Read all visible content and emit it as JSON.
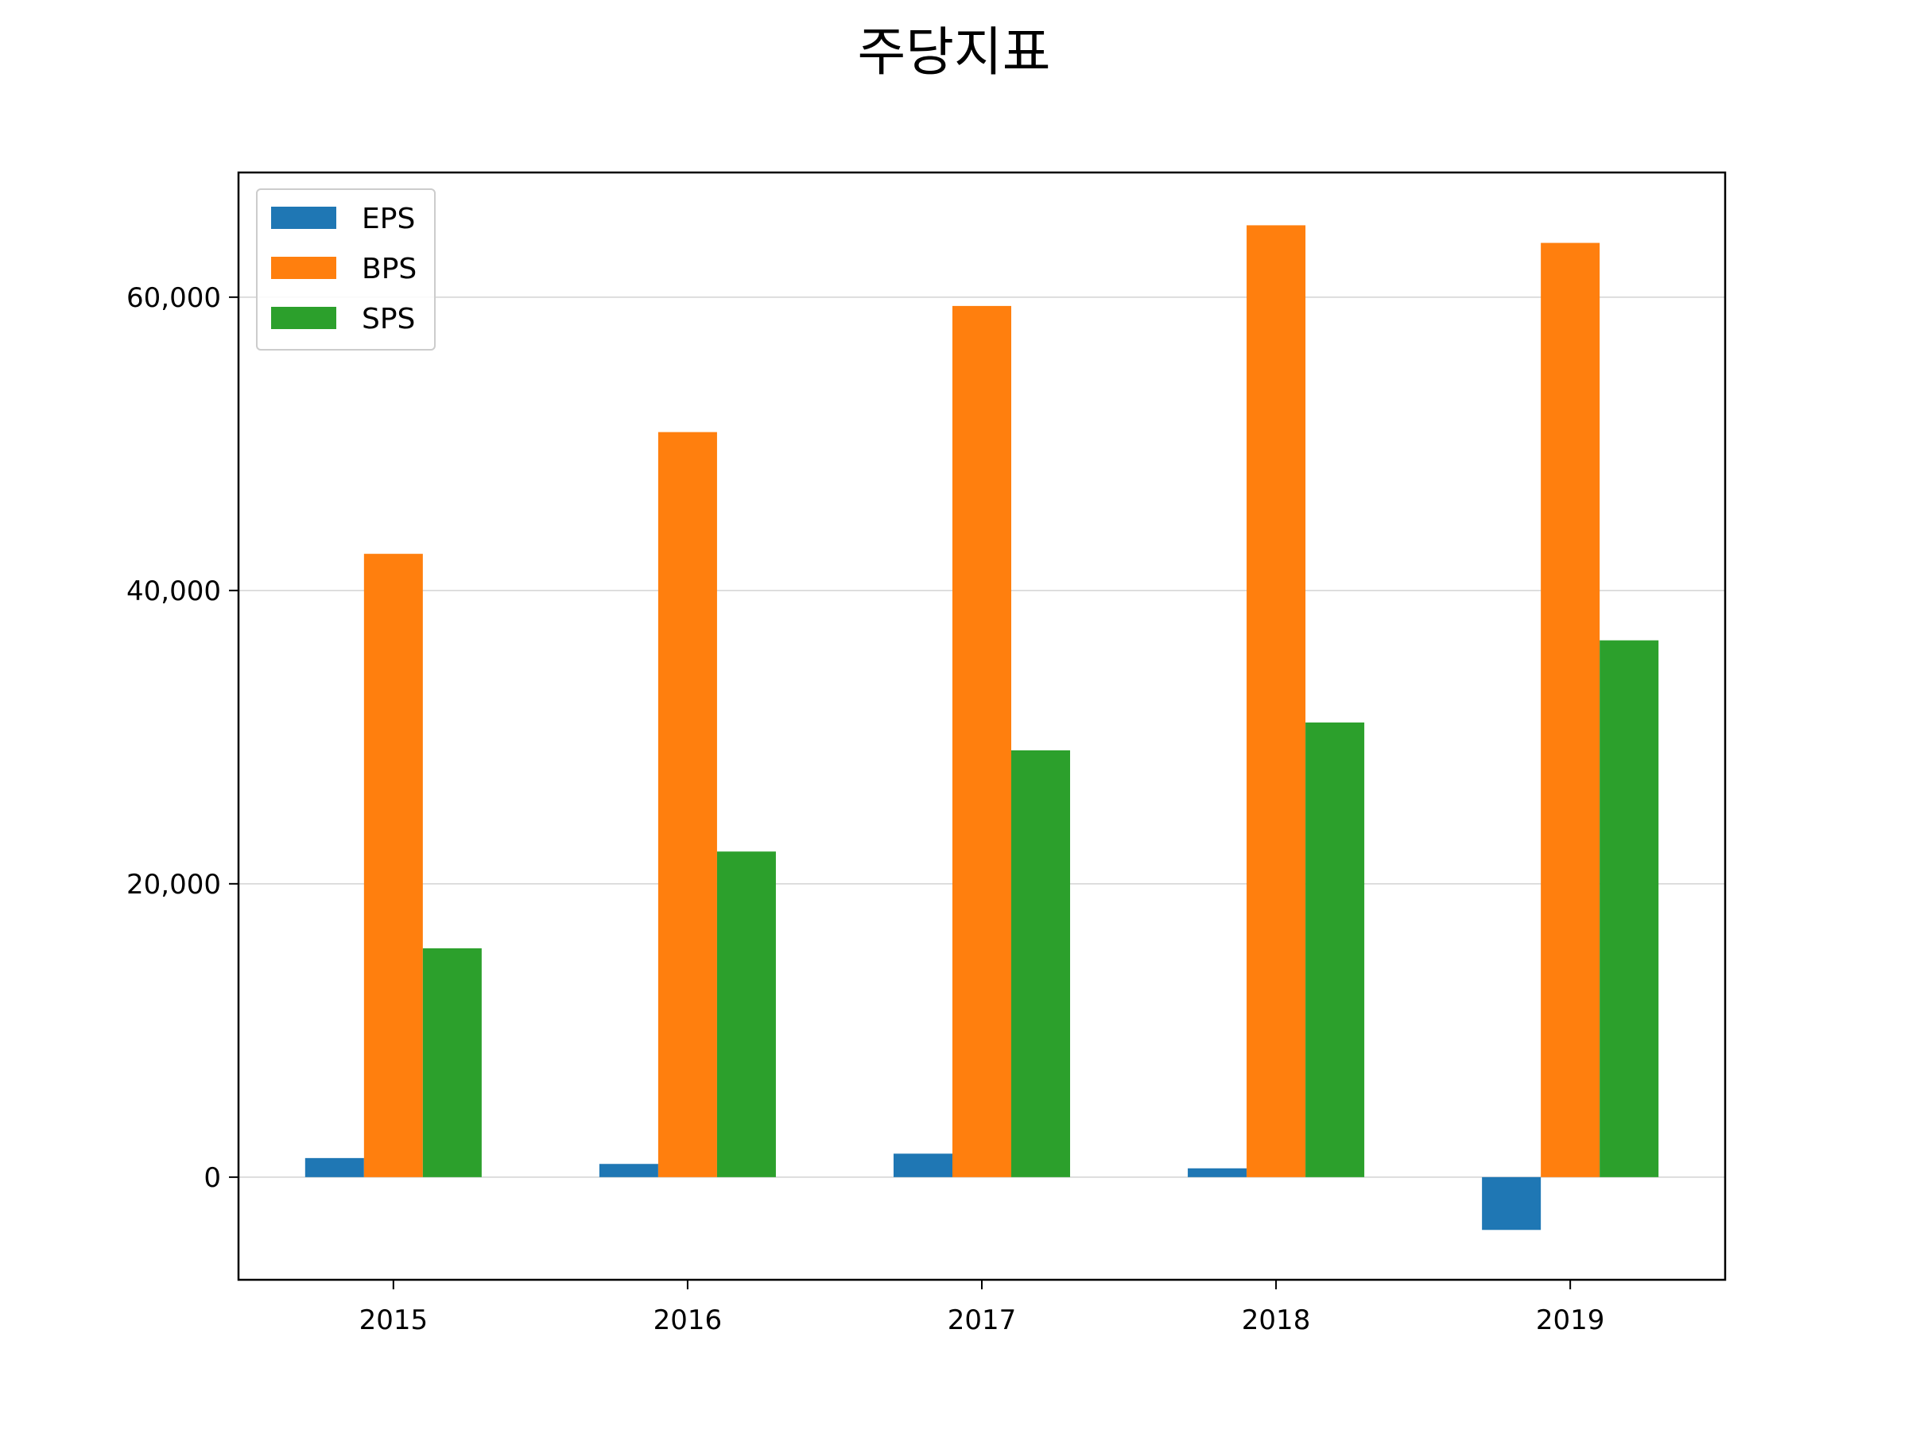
{
  "chart_data": {
    "type": "bar",
    "title": "주당지표",
    "xlabel": "",
    "ylabel": "",
    "categories": [
      "2015",
      "2016",
      "2017",
      "2018",
      "2019"
    ],
    "series": [
      {
        "name": "EPS",
        "color": "#1f77b4",
        "values": [
          1300,
          900,
          1600,
          600,
          -3600
        ]
      },
      {
        "name": "BPS",
        "color": "#ff7f0e",
        "values": [
          42500,
          50800,
          59400,
          64900,
          63700
        ]
      },
      {
        "name": "SPS",
        "color": "#2ca02c",
        "values": [
          15600,
          22200,
          29100,
          31000,
          36600
        ]
      }
    ],
    "ylim": [
      -7000,
      68500
    ],
    "yticks": [
      0,
      20000,
      40000,
      60000
    ],
    "ytick_labels": [
      "0",
      "20,000",
      "40,000",
      "60,000"
    ],
    "grid": "horizontal",
    "legend_position": "upper-left"
  }
}
